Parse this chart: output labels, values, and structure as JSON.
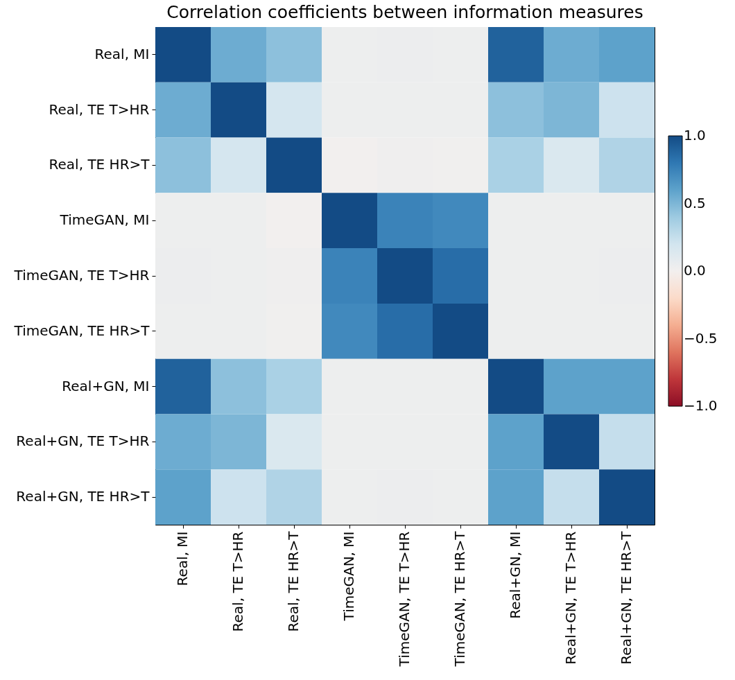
{
  "chart_data": {
    "type": "heatmap",
    "title": "Correlation coefficients between information measures",
    "categories": [
      "Real, MI",
      "Real, TE T>HR",
      "Real, TE HR>T",
      "TimeGAN, MI",
      "TimeGAN, TE T>HR",
      "TimeGAN, TE HR>T",
      "Real+GN, MI",
      "Real+GN, TE T>HR",
      "Real+GN, TE HR>T"
    ],
    "y_categories": [
      "Real, MI",
      "Real, TE T>HR",
      "Real, TE HR>T",
      "TimeGAN, MI",
      "TimeGAN, TE T>HR",
      "TimeGAN, TE HR>T",
      "Real+GN, MI",
      "Real+GN, TE T>HR",
      "Real+GN, TE HR>T"
    ],
    "cells": [
      [
        1,
        0.55,
        0.45,
        0.03,
        0.04,
        0.03,
        0.9,
        0.55,
        0.6
      ],
      [
        0.55,
        1,
        0.18,
        0.03,
        0.03,
        0.03,
        0.45,
        0.5,
        0.22
      ],
      [
        0.45,
        0.18,
        1,
        0.0,
        0.02,
        0.01,
        0.35,
        0.15,
        0.33
      ],
      [
        0.03,
        0.03,
        0.0,
        1,
        0.75,
        0.72,
        0.03,
        0.03,
        0.03
      ],
      [
        0.04,
        0.03,
        0.02,
        0.75,
        1,
        0.85,
        0.03,
        0.03,
        0.04
      ],
      [
        0.03,
        0.03,
        0.01,
        0.72,
        0.85,
        1,
        0.03,
        0.03,
        0.03
      ],
      [
        0.9,
        0.45,
        0.35,
        0.03,
        0.03,
        0.03,
        1,
        0.6,
        0.6
      ],
      [
        0.55,
        0.5,
        0.15,
        0.03,
        0.03,
        0.03,
        0.6,
        1,
        0.25
      ],
      [
        0.6,
        0.22,
        0.33,
        0.03,
        0.04,
        0.03,
        0.6,
        0.25,
        1
      ]
    ],
    "clim": [
      -1,
      1
    ],
    "cticks": [
      {
        "value": 1,
        "label": "1.0"
      },
      {
        "value": 0.5,
        "label": "0.5"
      },
      {
        "value": 0,
        "label": "0.0"
      },
      {
        "value": -0.5,
        "label": "−0.5"
      },
      {
        "value": -1,
        "label": "−1.0"
      }
    ]
  }
}
